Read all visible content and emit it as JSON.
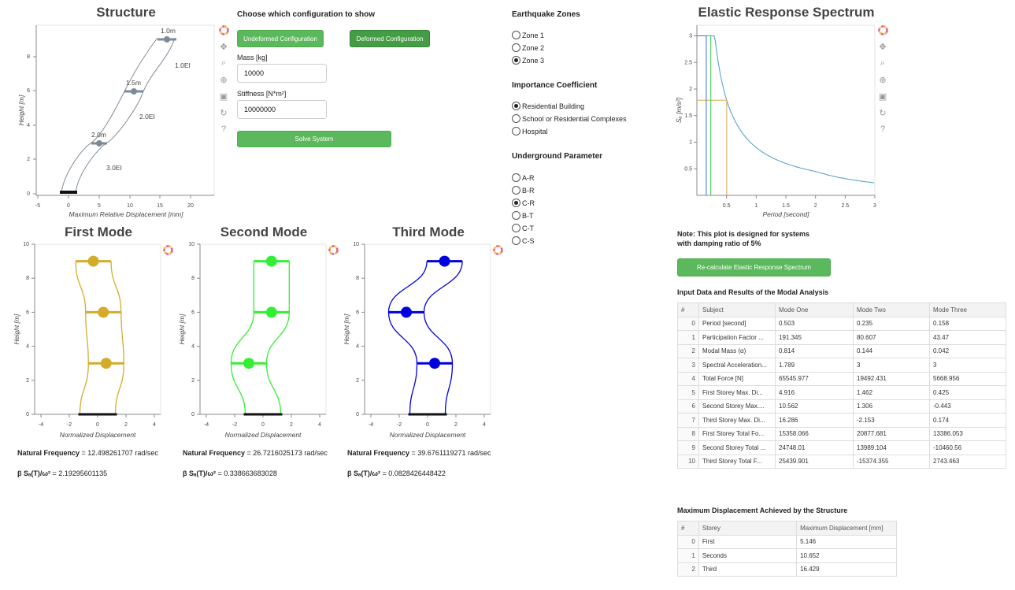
{
  "structure": {
    "title": "Structure",
    "xlabel": "Maximum Relative Displacement [mm]",
    "ylabel": "Height [m]",
    "xticks": [
      "-5",
      "0",
      "5",
      "10",
      "15",
      "20"
    ],
    "yticks": [
      "0",
      "2",
      "4",
      "6",
      "8"
    ],
    "stories": [
      {
        "label": "1.0m",
        "stiff": "1.0EI"
      },
      {
        "label": "1.5m",
        "stiff": "2.0EI"
      },
      {
        "label": "2.0m",
        "stiff": "3.0EI"
      }
    ]
  },
  "config": {
    "heading": "Choose which configuration to show",
    "undeformed_label": "Undeformed Configuration",
    "deformed_label": "Deformed Configuration",
    "mass_label": "Mass [kg]",
    "mass_value": "10000",
    "stiffness_label": "Stiffness [N*m²]",
    "stiffness_value": "10000000",
    "solve_label": "Solve System"
  },
  "zones": {
    "heading": "Earthquake Zones",
    "options": [
      "Zone 1",
      "Zone 2",
      "Zone 3"
    ],
    "selected": 2
  },
  "importance": {
    "heading": "Importance Coefficient",
    "options": [
      "Residential Building",
      "School or Residential Complexes",
      "Hospital"
    ],
    "selected": 0
  },
  "underground": {
    "heading": "Underground Parameter",
    "options": [
      "A-R",
      "B-R",
      "C-R",
      "B-T",
      "C-T",
      "C-S"
    ],
    "selected": 2
  },
  "spectrum": {
    "title": "Elastic Response Spectrum",
    "xlabel": "Period [second]",
    "ylabel": "Sₐ [m/s²]",
    "xticks": [
      "0.5",
      "1",
      "1.5",
      "2",
      "2.5",
      "3"
    ],
    "yticks": [
      "0.5",
      "1",
      "1.5",
      "2",
      "2.5",
      "3"
    ],
    "note_line1": "Note: This plot is designed for systems",
    "note_line2": "with damping ratio of 5%",
    "recalc_label": "Re-calculate Elastic Response Spectrum",
    "curve_color": "#4c9ac8",
    "mode_colors": [
      "#d4a84b",
      "#2ecc40",
      "#3c6de0"
    ]
  },
  "modes": [
    {
      "title": "First Mode",
      "color": "#d4ac2b",
      "freq_label": "Natural Frequency",
      "freq_value": " = 12.498261707 rad/sec",
      "beta_label": "β Sₐ(T)/ω²",
      "beta_value": " = 2.19295601135",
      "disp": [
        0.6,
        0.4,
        -0.3
      ]
    },
    {
      "title": "Second Mode",
      "color": "#33ee33",
      "freq_label": "Natural Frequency",
      "freq_value": " = 26.7216025173 rad/sec",
      "beta_label": "β Sₐ(T)/ω²",
      "beta_value": " = 0.338663683028",
      "disp": [
        -1.0,
        0.6,
        0.6
      ]
    },
    {
      "title": "Third Mode",
      "color": "#0000dd",
      "freq_label": "Natural Frequency",
      "freq_value": " = 39.6761119271 rad/sec",
      "beta_label": "β Sₐ(T)/ω²",
      "beta_value": " = 0.0828426448422",
      "disp": [
        0.5,
        -1.5,
        1.2
      ]
    }
  ],
  "mode_axes": {
    "xlabel": "Normalized Displacement",
    "ylabel": "Height [m]",
    "xticks": [
      "-4",
      "-2",
      "0",
      "2",
      "4"
    ],
    "yticks": [
      "0",
      "2",
      "4",
      "6",
      "8",
      "10"
    ]
  },
  "results": {
    "heading": "Input Data and Results of the Modal Analysis",
    "columns": [
      "#",
      "Subject",
      "Mode One",
      "Mode Two",
      "Mode Three"
    ],
    "rows": [
      [
        "0",
        "Period [second]",
        "0.503",
        "0.235",
        "0.158"
      ],
      [
        "1",
        "Participation Factor ...",
        "191.345",
        "80.607",
        "43.47"
      ],
      [
        "2",
        "Modal Mass (α)",
        "0.814",
        "0.144",
        "0.042"
      ],
      [
        "3",
        "Spectral Acceleration...",
        "1.789",
        "3",
        "3"
      ],
      [
        "4",
        "Total Force [N]",
        "65545.977",
        "19492.431",
        "5668.956"
      ],
      [
        "5",
        "First Storey Max. Di...",
        "4.916",
        "1.462",
        "0.425"
      ],
      [
        "6",
        "Second Storey Max....",
        "10.562",
        "1.306",
        "-0.443"
      ],
      [
        "7",
        "Third Storey Max. Di...",
        "16.286",
        "-2.153",
        "0.174"
      ],
      [
        "8",
        "First Storey Total Fo...",
        "15358.066",
        "20877.681",
        "13386.053"
      ],
      [
        "9",
        "Second Storey Total ...",
        "24748.01",
        "13989.104",
        "-10460.56"
      ],
      [
        "10",
        "Third Storey Total F...",
        "25439.901",
        "-15374.355",
        "2743.463"
      ]
    ]
  },
  "maxdisp": {
    "heading": "Maximum Displacement Achieved by the Structure",
    "columns": [
      "#",
      "Storey",
      "Maximum Displacement [mm]"
    ],
    "rows": [
      [
        "0",
        "First",
        "5.146"
      ],
      [
        "1",
        "Seconds",
        "10.652"
      ],
      [
        "2",
        "Third",
        "16.429"
      ]
    ]
  }
}
